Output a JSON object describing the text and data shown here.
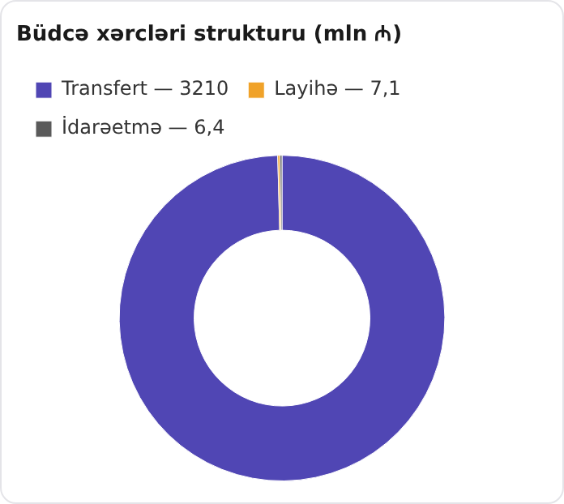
{
  "chart_data": {
    "type": "donut",
    "title": "Büdcə xərcləri strukturu (mln ₼)",
    "categories": [
      "Transfert — 3210",
      "Layihə — 7,1",
      "İdarəetmə — 6,4"
    ],
    "values": [
      3210,
      7.1,
      6.4
    ],
    "colors": [
      "#5046b4",
      "#f0a229",
      "#5a5a5a"
    ],
    "legend": "top left"
  }
}
